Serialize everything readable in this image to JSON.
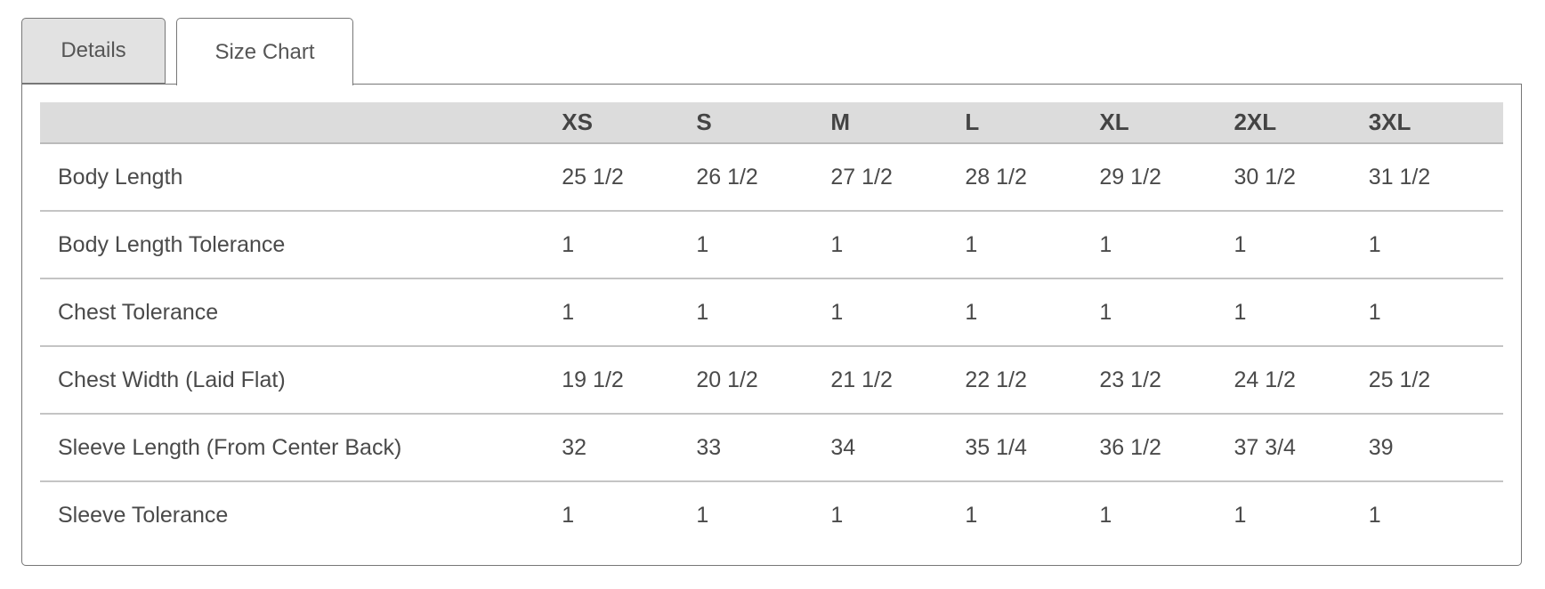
{
  "tabs": [
    {
      "label": "Details",
      "active": false
    },
    {
      "label": "Size Chart",
      "active": true
    }
  ],
  "size_chart": {
    "columns": [
      "XS",
      "S",
      "M",
      "L",
      "XL",
      "2XL",
      "3XL"
    ],
    "rows": [
      {
        "label": "Body Length",
        "values": [
          "25 1/2",
          "26 1/2",
          "27 1/2",
          "28 1/2",
          "29 1/2",
          "30 1/2",
          "31 1/2"
        ]
      },
      {
        "label": "Body Length Tolerance",
        "values": [
          "1",
          "1",
          "1",
          "1",
          "1",
          "1",
          "1"
        ]
      },
      {
        "label": "Chest Tolerance",
        "values": [
          "1",
          "1",
          "1",
          "1",
          "1",
          "1",
          "1"
        ]
      },
      {
        "label": "Chest Width (Laid Flat)",
        "values": [
          "19 1/2",
          "20 1/2",
          "21 1/2",
          "22 1/2",
          "23 1/2",
          "24 1/2",
          "25 1/2"
        ]
      },
      {
        "label": "Sleeve Length (From Center Back)",
        "values": [
          "32",
          "33",
          "34",
          "35 1/4",
          "36 1/2",
          "37 3/4",
          "39"
        ]
      },
      {
        "label": "Sleeve Tolerance",
        "values": [
          "1",
          "1",
          "1",
          "1",
          "1",
          "1",
          "1"
        ]
      }
    ]
  }
}
